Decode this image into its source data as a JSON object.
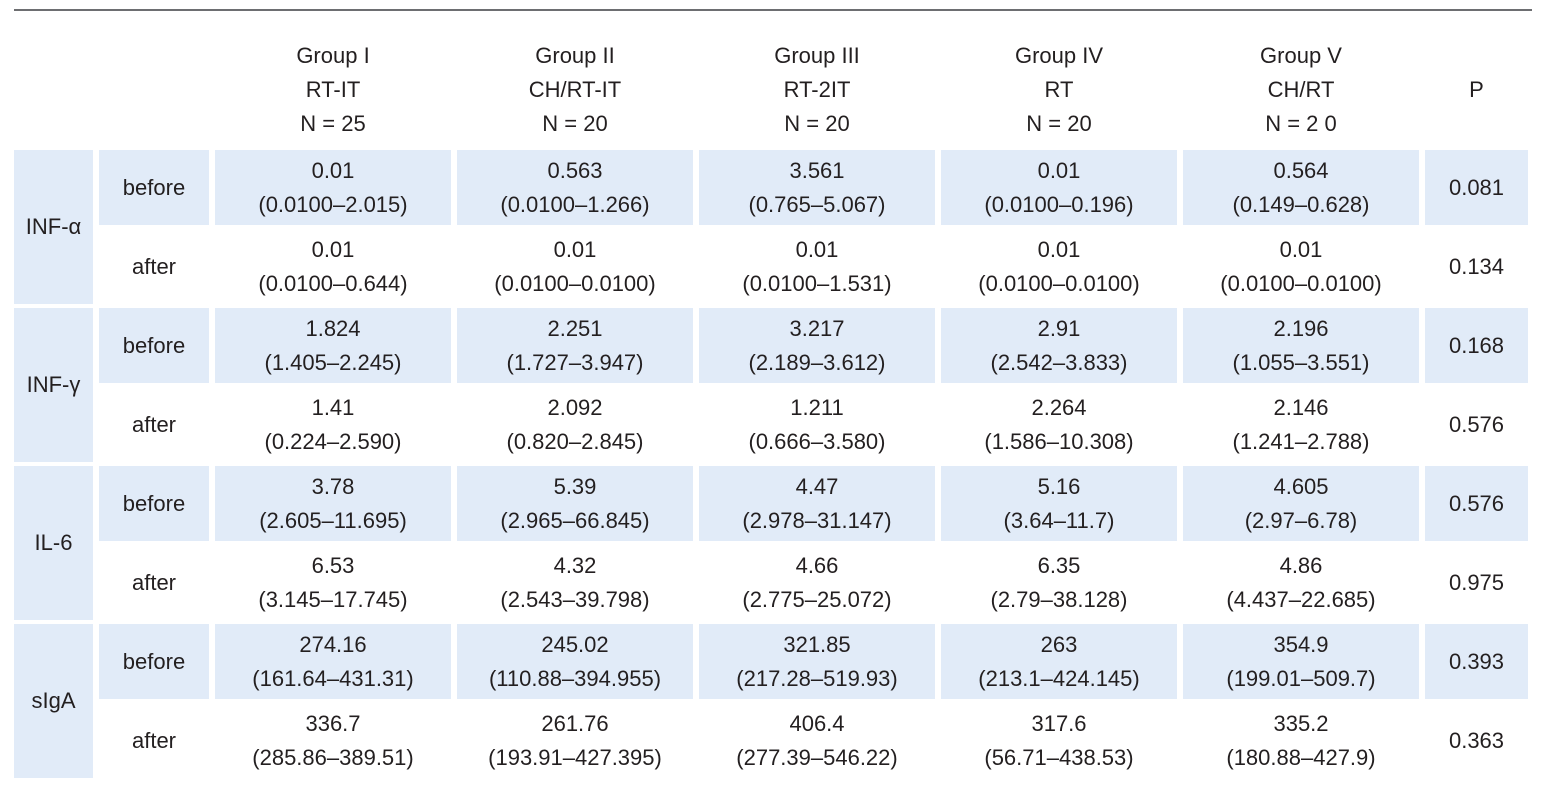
{
  "columns": [
    {
      "name": "Group I",
      "regimen": "RT-IT",
      "n": "N = 25"
    },
    {
      "name": "Group II",
      "regimen": "CH/RT-IT",
      "n": "N = 20"
    },
    {
      "name": "Group III",
      "regimen": "RT-2IT",
      "n": "N = 20"
    },
    {
      "name": "Group IV",
      "regimen": "RT",
      "n": "N = 20"
    },
    {
      "name": "Group V",
      "regimen": "CH/RT",
      "n": "N = 2 0"
    }
  ],
  "p_header": "P",
  "parameters": [
    {
      "name": "INF-α",
      "rows": [
        {
          "time": "before",
          "values": [
            {
              "median": "0.01",
              "range": "(0.0100–2.015)"
            },
            {
              "median": "0.563",
              "range": "(0.0100–1.266)"
            },
            {
              "median": "3.561",
              "range": "(0.765–5.067)"
            },
            {
              "median": "0.01",
              "range": "(0.0100–0.196)"
            },
            {
              "median": "0.564",
              "range": "(0.149–0.628)"
            }
          ],
          "p": "0.081"
        },
        {
          "time": "after",
          "values": [
            {
              "median": "0.01",
              "range": "(0.0100–0.644)"
            },
            {
              "median": "0.01",
              "range": "(0.0100–0.0100)"
            },
            {
              "median": "0.01",
              "range": "(0.0100–1.531)"
            },
            {
              "median": "0.01",
              "range": "(0.0100–0.0100)"
            },
            {
              "median": "0.01",
              "range": "(0.0100–0.0100)"
            }
          ],
          "p": "0.134"
        }
      ]
    },
    {
      "name": "INF-γ",
      "rows": [
        {
          "time": "before",
          "values": [
            {
              "median": "1.824",
              "range": "(1.405–2.245)"
            },
            {
              "median": "2.251",
              "range": "(1.727–3.947)"
            },
            {
              "median": "3.217",
              "range": "(2.189–3.612)"
            },
            {
              "median": "2.91",
              "range": "(2.542–3.833)"
            },
            {
              "median": "2.196",
              "range": "(1.055–3.551)"
            }
          ],
          "p": "0.168"
        },
        {
          "time": "after",
          "values": [
            {
              "median": "1.41",
              "range": "(0.224–2.590)"
            },
            {
              "median": "2.092",
              "range": "(0.820–2.845)"
            },
            {
              "median": "1.211",
              "range": "(0.666–3.580)"
            },
            {
              "median": "2.264",
              "range": "(1.586–10.308)"
            },
            {
              "median": "2.146",
              "range": "(1.241–2.788)"
            }
          ],
          "p": "0.576"
        }
      ]
    },
    {
      "name": "IL-6",
      "rows": [
        {
          "time": "before",
          "values": [
            {
              "median": "3.78",
              "range": "(2.605–11.695)"
            },
            {
              "median": "5.39",
              "range": "(2.965–66.845)"
            },
            {
              "median": "4.47",
              "range": "(2.978–31.147)"
            },
            {
              "median": "5.16",
              "range": "(3.64–11.7)"
            },
            {
              "median": "4.605",
              "range": "(2.97–6.78)"
            }
          ],
          "p": "0.576"
        },
        {
          "time": "after",
          "values": [
            {
              "median": "6.53",
              "range": "(3.145–17.745)"
            },
            {
              "median": "4.32",
              "range": "(2.543–39.798)"
            },
            {
              "median": "4.66",
              "range": "(2.775–25.072)"
            },
            {
              "median": "6.35",
              "range": "(2.79–38.128)"
            },
            {
              "median": "4.86",
              "range": "(4.437–22.685)"
            }
          ],
          "p": "0.975"
        }
      ]
    },
    {
      "name": "sIgA",
      "rows": [
        {
          "time": "before",
          "values": [
            {
              "median": "274.16",
              "range": "(161.64–431.31)"
            },
            {
              "median": "245.02",
              "range": "(110.88–394.955)"
            },
            {
              "median": "321.85",
              "range": "(217.28–519.93)"
            },
            {
              "median": "263",
              "range": "(213.1–424.145)"
            },
            {
              "median": "354.9",
              "range": "(199.01–509.7)"
            }
          ],
          "p": "0.393"
        },
        {
          "time": "after",
          "values": [
            {
              "median": "336.7",
              "range": "(285.86–389.51)"
            },
            {
              "median": "261.76",
              "range": "(193.91–427.395)"
            },
            {
              "median": "406.4",
              "range": "(277.39–546.22)"
            },
            {
              "median": "317.6",
              "range": "(56.71–438.53)"
            },
            {
              "median": "335.2",
              "range": "(180.88–427.9)"
            }
          ],
          "p": "0.363"
        }
      ]
    }
  ]
}
